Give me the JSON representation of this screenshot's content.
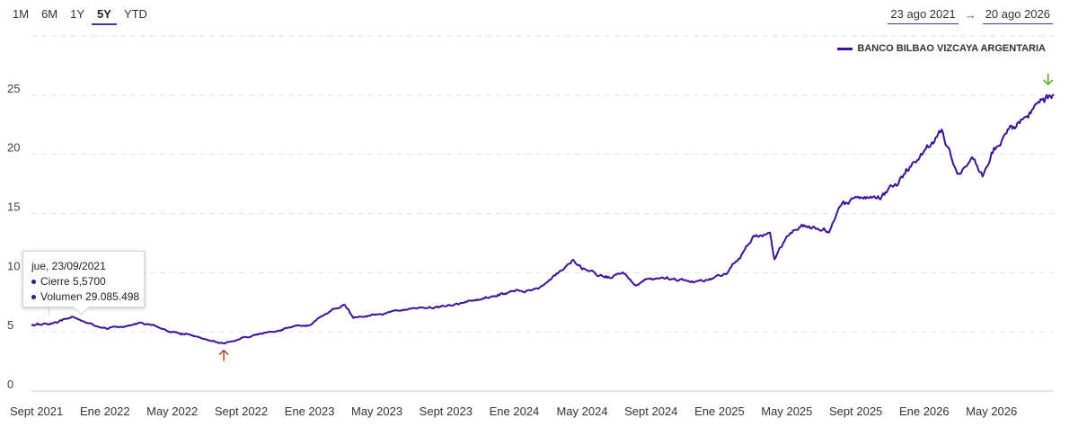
{
  "range_buttons": [
    "1M",
    "6M",
    "1Y",
    "5Y",
    "YTD"
  ],
  "active_range": "5Y",
  "date_range": {
    "start": "23 ago 2021",
    "arrow": "→",
    "end": "20 ago 2026"
  },
  "tooltip": {
    "date": "jue, 23/09/2021",
    "close": "Cierre 5,5700",
    "volume": "Volumen 29.085.498"
  },
  "colors": {
    "line": "#3d119e",
    "accent": "#4b2fb0",
    "min_marker": "#b5402a",
    "max_marker": "#4caf2a",
    "grid": "#e2e2e2"
  },
  "chart_data": {
    "type": "line",
    "series": [
      {
        "name": "BANCO BILBAO VIZCAYA ARGENTARIA",
        "points": [
          [
            "2021-08-23",
            5.6
          ],
          [
            "2021-10-01",
            5.7
          ],
          [
            "2021-11-05",
            6.2
          ],
          [
            "2021-12-01",
            5.7
          ],
          [
            "2022-01-03",
            5.2
          ],
          [
            "2022-02-01",
            5.5
          ],
          [
            "2022-03-01",
            5.8
          ],
          [
            "2022-04-01",
            5.6
          ],
          [
            "2022-05-01",
            5.0
          ],
          [
            "2022-06-01",
            4.8
          ],
          [
            "2022-07-15",
            4.2
          ],
          [
            "2022-08-01",
            4.0
          ],
          [
            "2022-09-01",
            4.5
          ],
          [
            "2022-10-01",
            4.8
          ],
          [
            "2022-11-01",
            5.0
          ],
          [
            "2022-12-01",
            5.4
          ],
          [
            "2023-01-01",
            5.5
          ],
          [
            "2023-02-01",
            6.5
          ],
          [
            "2023-03-05",
            7.3
          ],
          [
            "2023-03-20",
            6.2
          ],
          [
            "2023-05-01",
            6.6
          ],
          [
            "2023-07-01",
            7.0
          ],
          [
            "2023-09-01",
            7.2
          ],
          [
            "2023-10-15",
            7.5
          ],
          [
            "2023-12-01",
            8.2
          ],
          [
            "2024-01-15",
            8.4
          ],
          [
            "2024-02-15",
            8.8
          ],
          [
            "2024-04-01",
            10.5
          ],
          [
            "2024-04-15",
            11.0
          ],
          [
            "2024-05-01",
            10.3
          ],
          [
            "2024-06-15",
            9.6
          ],
          [
            "2024-07-15",
            9.8
          ],
          [
            "2024-08-05",
            8.9
          ],
          [
            "2024-09-01",
            9.6
          ],
          [
            "2024-10-15",
            9.3
          ],
          [
            "2024-12-01",
            9.4
          ],
          [
            "2025-01-15",
            10.0
          ],
          [
            "2025-03-01",
            12.8
          ],
          [
            "2025-04-01",
            13.5
          ],
          [
            "2025-04-09",
            11.0
          ],
          [
            "2025-05-01",
            13.0
          ],
          [
            "2025-06-01",
            13.9
          ],
          [
            "2025-07-15",
            13.5
          ],
          [
            "2025-08-01",
            15.5
          ],
          [
            "2025-09-01",
            16.5
          ],
          [
            "2025-10-15",
            16.3
          ],
          [
            "2025-11-15",
            18.0
          ],
          [
            "2025-12-15",
            19.5
          ],
          [
            "2026-01-15",
            21.0
          ],
          [
            "2026-02-01",
            22.0
          ],
          [
            "2026-02-15",
            20.2
          ],
          [
            "2026-03-01",
            18.5
          ],
          [
            "2026-04-01",
            19.5
          ],
          [
            "2026-04-15",
            18.2
          ],
          [
            "2026-05-01",
            19.8
          ],
          [
            "2026-06-01",
            22.0
          ],
          [
            "2026-07-01",
            23.0
          ],
          [
            "2026-08-01",
            24.8
          ],
          [
            "2026-08-20",
            24.8
          ]
        ]
      }
    ],
    "x_tick_labels": [
      "Sept 2021",
      "Ene 2022",
      "May 2022",
      "Sept 2022",
      "Ene 2023",
      "May 2023",
      "Sept 2023",
      "Ene 2024",
      "May 2024",
      "Sept 2024",
      "Ene 2025",
      "May 2025",
      "Sept 2025",
      "Ene 2026",
      "May 2026"
    ],
    "x_tick_dates": [
      "2021-09-01",
      "2022-01-01",
      "2022-05-01",
      "2022-09-01",
      "2023-01-01",
      "2023-05-01",
      "2023-09-01",
      "2024-01-01",
      "2024-05-01",
      "2024-09-01",
      "2025-01-01",
      "2025-05-01",
      "2025-09-01",
      "2026-01-01",
      "2026-05-01"
    ],
    "y_ticks": [
      0,
      5,
      10,
      15,
      20,
      25
    ],
    "xlim": [
      "2021-08-23",
      "2026-08-20"
    ],
    "ylim": [
      0,
      30
    ],
    "grid": true,
    "legend_position": "top-right",
    "markers": {
      "min": "2022-08-01",
      "max": "2026-08-10"
    }
  }
}
